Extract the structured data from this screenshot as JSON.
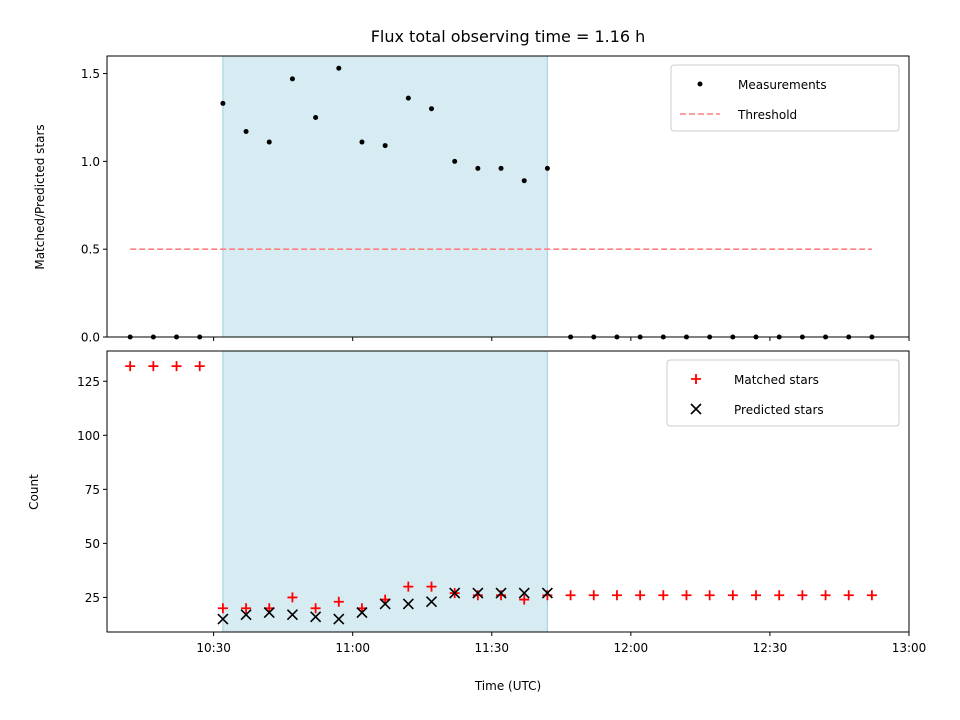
{
  "chart_data": [
    {
      "type": "scatter",
      "title": "Flux total observing time = 1.16 h",
      "ylabel": "Matched/Predicted stars",
      "xlabel": "",
      "xlim": [
        "10:07",
        "13:00"
      ],
      "ylim": [
        0,
        1.6
      ],
      "x_ticks": [
        "10:30",
        "11:00",
        "11:30",
        "12:00",
        "12:30",
        "13:00"
      ],
      "y_ticks": [
        "0.0",
        "0.5",
        "1.0",
        "1.5"
      ],
      "highlight_span": [
        "10:32",
        "11:42"
      ],
      "legend_position": "top-right",
      "series": [
        {
          "name": "Measurements",
          "kind": "dot",
          "color": "#000000",
          "x": [
            "10:12",
            "10:17",
            "10:22",
            "10:27",
            "10:32",
            "10:37",
            "10:42",
            "10:47",
            "10:52",
            "10:57",
            "11:02",
            "11:07",
            "11:12",
            "11:17",
            "11:22",
            "11:27",
            "11:32",
            "11:37",
            "11:42",
            "11:47",
            "11:52",
            "11:57",
            "12:02",
            "12:07",
            "12:12",
            "12:17",
            "12:22",
            "12:27",
            "12:32",
            "12:37",
            "12:42",
            "12:47",
            "12:52"
          ],
          "values": [
            0,
            0,
            0,
            0,
            1.33,
            1.17,
            1.11,
            1.47,
            1.25,
            1.53,
            1.11,
            1.09,
            1.36,
            1.3,
            1.0,
            0.96,
            0.96,
            0.89,
            0.96,
            0,
            0,
            0,
            0,
            0,
            0,
            0,
            0,
            0,
            0,
            0,
            0,
            0,
            0
          ]
        },
        {
          "name": "Threshold",
          "kind": "dashed-line",
          "color": "#ff7f7f",
          "x": [
            "10:12",
            "12:52"
          ],
          "values": [
            0.5,
            0.5
          ]
        }
      ]
    },
    {
      "type": "scatter",
      "title": "",
      "ylabel": "Count",
      "xlabel": "Time (UTC)",
      "xlim": [
        "10:07",
        "13:00"
      ],
      "ylim": [
        9,
        139
      ],
      "x_ticks": [
        "10:30",
        "11:00",
        "11:30",
        "12:00",
        "12:30",
        "13:00"
      ],
      "y_ticks": [
        "25",
        "50",
        "75",
        "100",
        "125"
      ],
      "highlight_span": [
        "10:32",
        "11:42"
      ],
      "legend_position": "top-right",
      "series": [
        {
          "name": "Matched stars",
          "kind": "plus",
          "color": "#ff0000",
          "x": [
            "10:12",
            "10:17",
            "10:22",
            "10:27",
            "10:32",
            "10:37",
            "10:42",
            "10:47",
            "10:52",
            "10:57",
            "11:02",
            "11:07",
            "11:12",
            "11:17",
            "11:22",
            "11:27",
            "11:32",
            "11:37",
            "11:42",
            "11:47",
            "11:52",
            "11:57",
            "12:02",
            "12:07",
            "12:12",
            "12:17",
            "12:22",
            "12:27",
            "12:32",
            "12:37",
            "12:42",
            "12:47",
            "12:52"
          ],
          "values": [
            132,
            132,
            132,
            132,
            20,
            20,
            20,
            25,
            20,
            23,
            20,
            24,
            30,
            30,
            27,
            26,
            26,
            24,
            26,
            26,
            26,
            26,
            26,
            26,
            26,
            26,
            26,
            26,
            26,
            26,
            26,
            26,
            26
          ]
        },
        {
          "name": "Predicted stars",
          "kind": "x",
          "color": "#000000",
          "x": [
            "10:32",
            "10:37",
            "10:42",
            "10:47",
            "10:52",
            "10:57",
            "11:02",
            "11:07",
            "11:12",
            "11:17",
            "11:22",
            "11:27",
            "11:32",
            "11:37",
            "11:42"
          ],
          "values": [
            15,
            17,
            18,
            17,
            16,
            15,
            18,
            22,
            22,
            23,
            27,
            27,
            27,
            27,
            27
          ]
        }
      ]
    }
  ]
}
